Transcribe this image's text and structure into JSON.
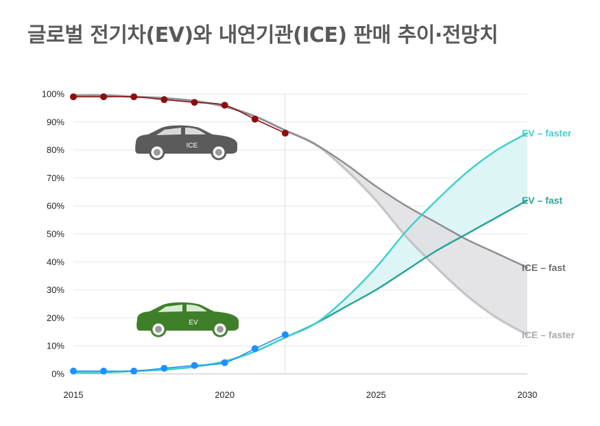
{
  "title": "글로벌 전기차(EV)와 내연기관(ICE) 판매 추이·전망치",
  "colors": {
    "ice_hist": "#8b0f0f",
    "ev_hist": "#1e90ff",
    "ev_faster": "#40d0cc",
    "ev_fast": "#2aa29a",
    "ice_fast": "#8d8d93",
    "ice_faster": "#c6c6cb",
    "ev_band": "#d7f3f2",
    "ice_band": "#dfdfe3",
    "ice_car": "#5b5b5b",
    "ev_car": "#3f7f2a"
  },
  "icons": {
    "ice_car": "sedan-car-icon",
    "ev_car": "sedan-car-icon"
  },
  "cars": {
    "ice_label": "ICE",
    "ev_label": "EV"
  },
  "chart_data": {
    "type": "line",
    "title": "글로벌 전기차(EV)와 내연기관(ICE) 판매 추이·전망치",
    "xlabel": "",
    "ylabel": "",
    "xlim": [
      2015,
      2030
    ],
    "ylim": [
      0,
      100
    ],
    "x_ticks": [
      2015,
      2020,
      2025,
      2030
    ],
    "y_ticks": [
      0,
      10,
      20,
      30,
      40,
      50,
      60,
      70,
      80,
      90,
      100
    ],
    "y_tick_suffix": "%",
    "grid": true,
    "projection_start": 2022,
    "series": [
      {
        "name": "ICE",
        "kind": "historical",
        "x": [
          2015,
          2016,
          2017,
          2018,
          2019,
          2020,
          2021,
          2022
        ],
        "y": [
          99,
          99,
          99,
          98,
          97,
          96,
          91,
          86
        ]
      },
      {
        "name": "EV",
        "kind": "historical",
        "x": [
          2015,
          2016,
          2017,
          2018,
          2019,
          2020,
          2021,
          2022
        ],
        "y": [
          1,
          1,
          1,
          2,
          3,
          4,
          9,
          14
        ]
      },
      {
        "name": "EV – faster",
        "kind": "projection",
        "x": [
          2015,
          2016,
          2017,
          2018,
          2019,
          2020,
          2021,
          2022,
          2023,
          2024,
          2025,
          2026,
          2027,
          2028,
          2029,
          2030
        ],
        "y": [
          0.5,
          0.5,
          1,
          1.5,
          2.5,
          4.5,
          8,
          13,
          18,
          27,
          38,
          51,
          62,
          72,
          80,
          86
        ]
      },
      {
        "name": "EV – fast",
        "kind": "projection",
        "x": [
          2015,
          2016,
          2017,
          2018,
          2019,
          2020,
          2021,
          2022,
          2023,
          2024,
          2025,
          2026,
          2027,
          2028,
          2029,
          2030
        ],
        "y": [
          0.5,
          0.5,
          1,
          1.5,
          2.5,
          4.5,
          8,
          13,
          18,
          24,
          30,
          37,
          44,
          50,
          56,
          62
        ]
      },
      {
        "name": "ICE – fast",
        "kind": "projection",
        "x": [
          2015,
          2016,
          2017,
          2018,
          2019,
          2020,
          2021,
          2022,
          2023,
          2024,
          2025,
          2026,
          2027,
          2028,
          2029,
          2030
        ],
        "y": [
          99.5,
          99.5,
          99,
          98.5,
          97.5,
          95.5,
          92,
          87,
          82,
          75,
          67,
          60,
          54,
          48,
          43,
          38
        ]
      },
      {
        "name": "ICE – faster",
        "kind": "projection",
        "x": [
          2015,
          2016,
          2017,
          2018,
          2019,
          2020,
          2021,
          2022,
          2023,
          2024,
          2025,
          2026,
          2027,
          2028,
          2029,
          2030
        ],
        "y": [
          99.5,
          99.5,
          99,
          98.5,
          97.5,
          95.5,
          92,
          87,
          82,
          73,
          62,
          49,
          38,
          28,
          20,
          14
        ]
      }
    ]
  }
}
